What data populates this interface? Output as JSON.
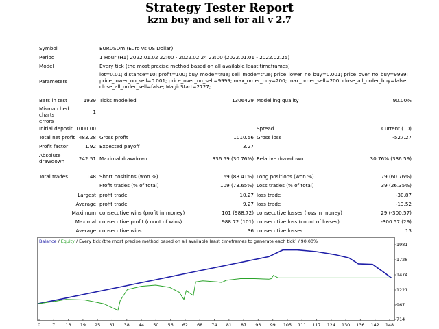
{
  "title": "Strategy Tester Report",
  "subtitle": "kzm buy and sell for all v 2.7",
  "rows": {
    "symbol_label": "Symbol",
    "symbol_value": "EURUSDm (Euro vs US Dollar)",
    "period_label": "Period",
    "period_value": "1 Hour (H1) 2022.01.02 22:00 - 2022.02.24 23:00 (2022.01.01 - 2022.02.25)",
    "model_label": "Model",
    "model_value": "Every tick (the most precise method based on all available least timeframes)",
    "params_label": "Parameters",
    "params_value": "lot=0.01; distance=10; profit=100; buy_mode=true; sell_mode=true; price_lower_no_buy=0.001; price_over_no_buy=9999; price_lower_no_sell=0.001; price_over_no_sell=9999; max_order_buy=200; max_order_sell=200; close_all_order_buy=false; close_all_order_sell=false; MagicStart=2727;",
    "bars_label": "Bars in test",
    "bars_value": "1939",
    "ticks_label": "Ticks modelled",
    "ticks_value": "1306429",
    "quality_label": "Modelling quality",
    "quality_value": "90.00%",
    "mismatch_label": "Mismatched charts errors",
    "mismatch_value": "1",
    "deposit_label": "Initial deposit",
    "deposit_value": "1000.00",
    "spread_label": "Spread",
    "spread_value": "Current (10)",
    "netprofit_label": "Total net profit",
    "netprofit_value": "483.28",
    "grossprofit_label": "Gross profit",
    "grossprofit_value": "1010.56",
    "grossloss_label": "Gross loss",
    "grossloss_value": "-527.27",
    "pf_label": "Profit factor",
    "pf_value": "1.92",
    "ep_label": "Expected payoff",
    "ep_value": "3.27",
    "absdd_label": "Absolute drawdown",
    "absdd_value": "242.51",
    "maxdd_label": "Maximal drawdown",
    "maxdd_value": "336.59 (30.76%)",
    "reldd_label": "Relative drawdown",
    "reldd_value": "30.76% (336.59)",
    "trades_label": "Total trades",
    "trades_value": "148",
    "short_label": "Short positions (won %)",
    "short_value": "69 (88.41%)",
    "long_label": "Long positions (won %)",
    "long_value": "79 (60.76%)",
    "pt_label": "Profit trades (% of total)",
    "pt_value": "109 (73.65%)",
    "lt_label": "Loss trades (% of total)",
    "lt_value": "39 (26.35%)",
    "largest_label": "Largest",
    "lg_profit_label": "profit trade",
    "lg_profit_value": "10.27",
    "lg_loss_label": "loss trade",
    "lg_loss_value": "-30.87",
    "average_label": "Average",
    "av_profit_label": "profit trade",
    "av_profit_value": "9.27",
    "av_loss_label": "loss trade",
    "av_loss_value": "-13.52",
    "maximum_label": "Maximum",
    "mx_wins_label": "consecutive wins (profit in money)",
    "mx_wins_value": "101 (988.72)",
    "mx_losses_label": "consecutive losses (loss in money)",
    "mx_losses_value": "29 (-300.57)",
    "maximal_label": "Maximal",
    "ml_profit_label": "consecutive profit (count of wins)",
    "ml_profit_value": "988.72 (101)",
    "ml_loss_label": "consecutive loss (count of losses)",
    "ml_loss_value": "-300.57 (29)",
    "average2_label": "Average",
    "ac_wins_label": "consecutive wins",
    "ac_wins_value": "36",
    "ac_losses_label": "consecutive losses",
    "ac_losses_value": "13"
  },
  "chart_data": {
    "type": "line",
    "legend_balance": "Balance",
    "legend_sep": " / ",
    "legend_equity": "Equity",
    "legend_rest": " / Every tick (the most precise method based on all available least timeframes to generate each tick) / 90.00%",
    "yticks": [
      "1981",
      "1728",
      "1474",
      "1221",
      "967",
      "714"
    ],
    "xticks": [
      "0",
      "7",
      "13",
      "19",
      "25",
      "31",
      "38",
      "44",
      "50",
      "56",
      "62",
      "68",
      "74",
      "81",
      "87",
      "93",
      "99",
      "105",
      "111",
      "117",
      "124",
      "130",
      "136",
      "142",
      "148"
    ],
    "ylim": [
      714,
      2080
    ],
    "xlim": [
      0,
      151
    ],
    "series": [
      {
        "name": "Balance",
        "color": "#1f1fa8",
        "x": [
          0,
          10,
          20,
          30,
          40,
          50,
          60,
          70,
          80,
          90,
          98,
          104,
          110,
          118,
          126,
          132,
          136,
          142,
          146,
          150
        ],
        "y": [
          1000,
          1088,
          1176,
          1264,
          1352,
          1440,
          1528,
          1616,
          1704,
          1792,
          1862,
          1985,
          1985,
          1955,
          1900,
          1840,
          1730,
          1720,
          1600,
          1474
        ]
      },
      {
        "name": "Equity",
        "color": "#2aa32a",
        "x": [
          0,
          8,
          12,
          20,
          28,
          34,
          35,
          38,
          44,
          50,
          56,
          60,
          62,
          63,
          66,
          67,
          70,
          76,
          78,
          80,
          86,
          92,
          98,
          99,
          100,
          102,
          110,
          120,
          130,
          140,
          150
        ],
        "y": [
          1000,
          1050,
          1080,
          1070,
          1000,
          880,
          1060,
          1260,
          1320,
          1340,
          1300,
          1210,
          1080,
          1240,
          1150,
          1400,
          1420,
          1400,
          1390,
          1430,
          1460,
          1460,
          1450,
          1460,
          1520,
          1474,
          1474,
          1474,
          1474,
          1474,
          1474
        ]
      }
    ]
  }
}
